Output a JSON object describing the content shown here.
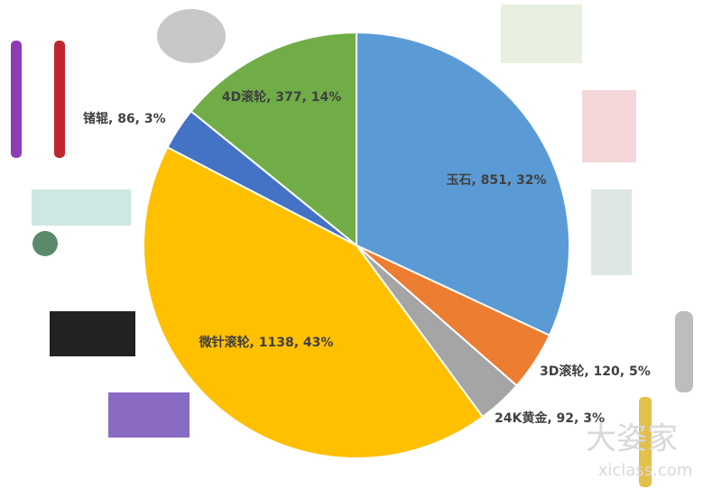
{
  "chart_data": {
    "type": "pie",
    "values": [
      851,
      120,
      92,
      1138,
      86,
      377
    ],
    "value_labels": [
      "玉石, 851, 32%",
      "3D滚轮, 120, 5%",
      "24K黄金, 92, 3%",
      "微针滚轮, 1138, 43%",
      "锗辊, 86, 3%",
      "4D滚轮, 377, 14%"
    ],
    "colors": [
      "#5b9bd5",
      "#ed7d31",
      "#a5a5a5",
      "#ffc000",
      "#4472c4",
      "#70ad47"
    ]
  },
  "watermark": {
    "brand": "大姿家",
    "site": "xiclass.com"
  }
}
